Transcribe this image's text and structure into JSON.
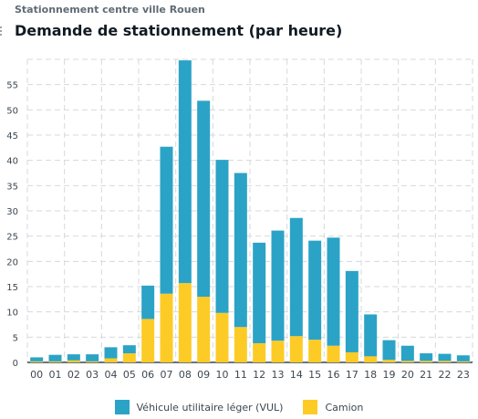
{
  "header": {
    "subtitle": "Stationnement centre ville Rouen",
    "title": "Demande de stationnement (par heure)"
  },
  "colors": {
    "vul": "#2ba3c6",
    "camion": "#fdcb26",
    "grid": "#d5d9dd",
    "axis": "#3d4750"
  },
  "chart_data": {
    "type": "bar",
    "stacked": true,
    "title": "Demande de stationnement (par heure)",
    "categories": [
      "00",
      "01",
      "02",
      "03",
      "04",
      "05",
      "06",
      "07",
      "08",
      "09",
      "10",
      "11",
      "12",
      "13",
      "14",
      "15",
      "16",
      "17",
      "18",
      "19",
      "20",
      "21",
      "22",
      "23"
    ],
    "series": [
      {
        "name": "Camion",
        "color": "#fdcb26",
        "values": [
          0.2,
          0.2,
          0.4,
          0.2,
          0.8,
          1.8,
          8.6,
          13.6,
          15.7,
          13.0,
          9.8,
          7.0,
          3.8,
          4.3,
          5.2,
          4.5,
          3.3,
          2.0,
          1.2,
          0.5,
          0.3,
          0.3,
          0.3,
          0.2
        ]
      },
      {
        "name": "Véhicule utilitaire léger (VUL)",
        "color": "#2ba3c6",
        "values": [
          0.8,
          1.3,
          1.2,
          1.4,
          2.2,
          1.6,
          6.6,
          29.1,
          44.1,
          38.8,
          30.3,
          30.5,
          19.9,
          21.8,
          23.4,
          19.6,
          21.4,
          16.1,
          8.3,
          3.9,
          3.0,
          1.5,
          1.4,
          1.2
        ]
      }
    ],
    "yticks": [
      0,
      5,
      10,
      15,
      20,
      25,
      30,
      35,
      40,
      45,
      50,
      55
    ],
    "ylim": [
      0,
      60
    ],
    "grid": true
  }
}
